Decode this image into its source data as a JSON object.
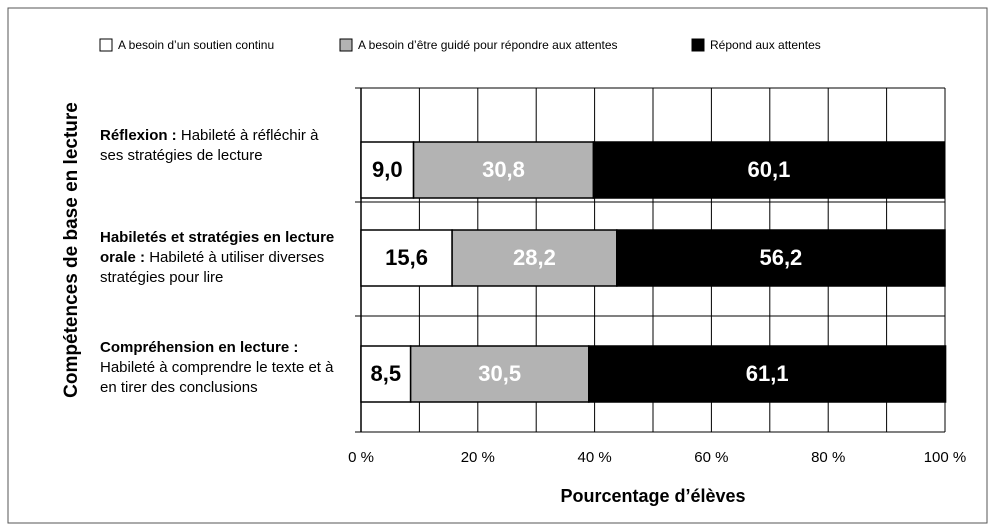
{
  "chart_data": {
    "type": "stacked_barh",
    "ylabel": "Compétences de base en lecture",
    "xlabel": "Pourcentage d’élèves",
    "categories": [
      {
        "bold": "Réflexion :",
        "text": "Habileté à réfléchir à ses stratégies de lecture"
      },
      {
        "bold": "Habiletés et stratégies en lecture orale :",
        "text": "Habileté à utiliser diverses stratégies pour lire"
      },
      {
        "bold": "Compréhension en lecture :",
        "text": "Habileté à comprendre le texte et à en tirer des conclusions"
      }
    ],
    "series": [
      {
        "name": "A besoin d’un soutien continu",
        "color": "#ffffff",
        "label_color": "#000000",
        "values": [
          9.0,
          15.6,
          8.5
        ],
        "value_labels": [
          "9,0",
          "15,6",
          "8,5"
        ]
      },
      {
        "name": "A besoin d’être guidé pour répondre aux attentes",
        "color": "#b3b3b3",
        "label_color": "#ffffff",
        "values": [
          30.8,
          28.2,
          30.5
        ],
        "value_labels": [
          "30,8",
          "28,2",
          "30,5"
        ]
      },
      {
        "name": "Répond aux attentes",
        "color": "#000000",
        "label_color": "#ffffff",
        "values": [
          60.1,
          56.2,
          61.1
        ],
        "value_labels": [
          "60,1",
          "56,2",
          "61,1"
        ]
      }
    ],
    "xlim": [
      0,
      100
    ],
    "xticks": [
      {
        "value": 0,
        "label": "0 %"
      },
      {
        "value": 20,
        "label": "20 %"
      },
      {
        "value": 40,
        "label": "40 %"
      },
      {
        "value": 60,
        "label": "60 %"
      },
      {
        "value": 80,
        "label": "80 %"
      },
      {
        "value": 100,
        "label": "100 %"
      }
    ],
    "minor_xticks": [
      10,
      30,
      50,
      70,
      90
    ],
    "grid": true,
    "legend": "top"
  }
}
